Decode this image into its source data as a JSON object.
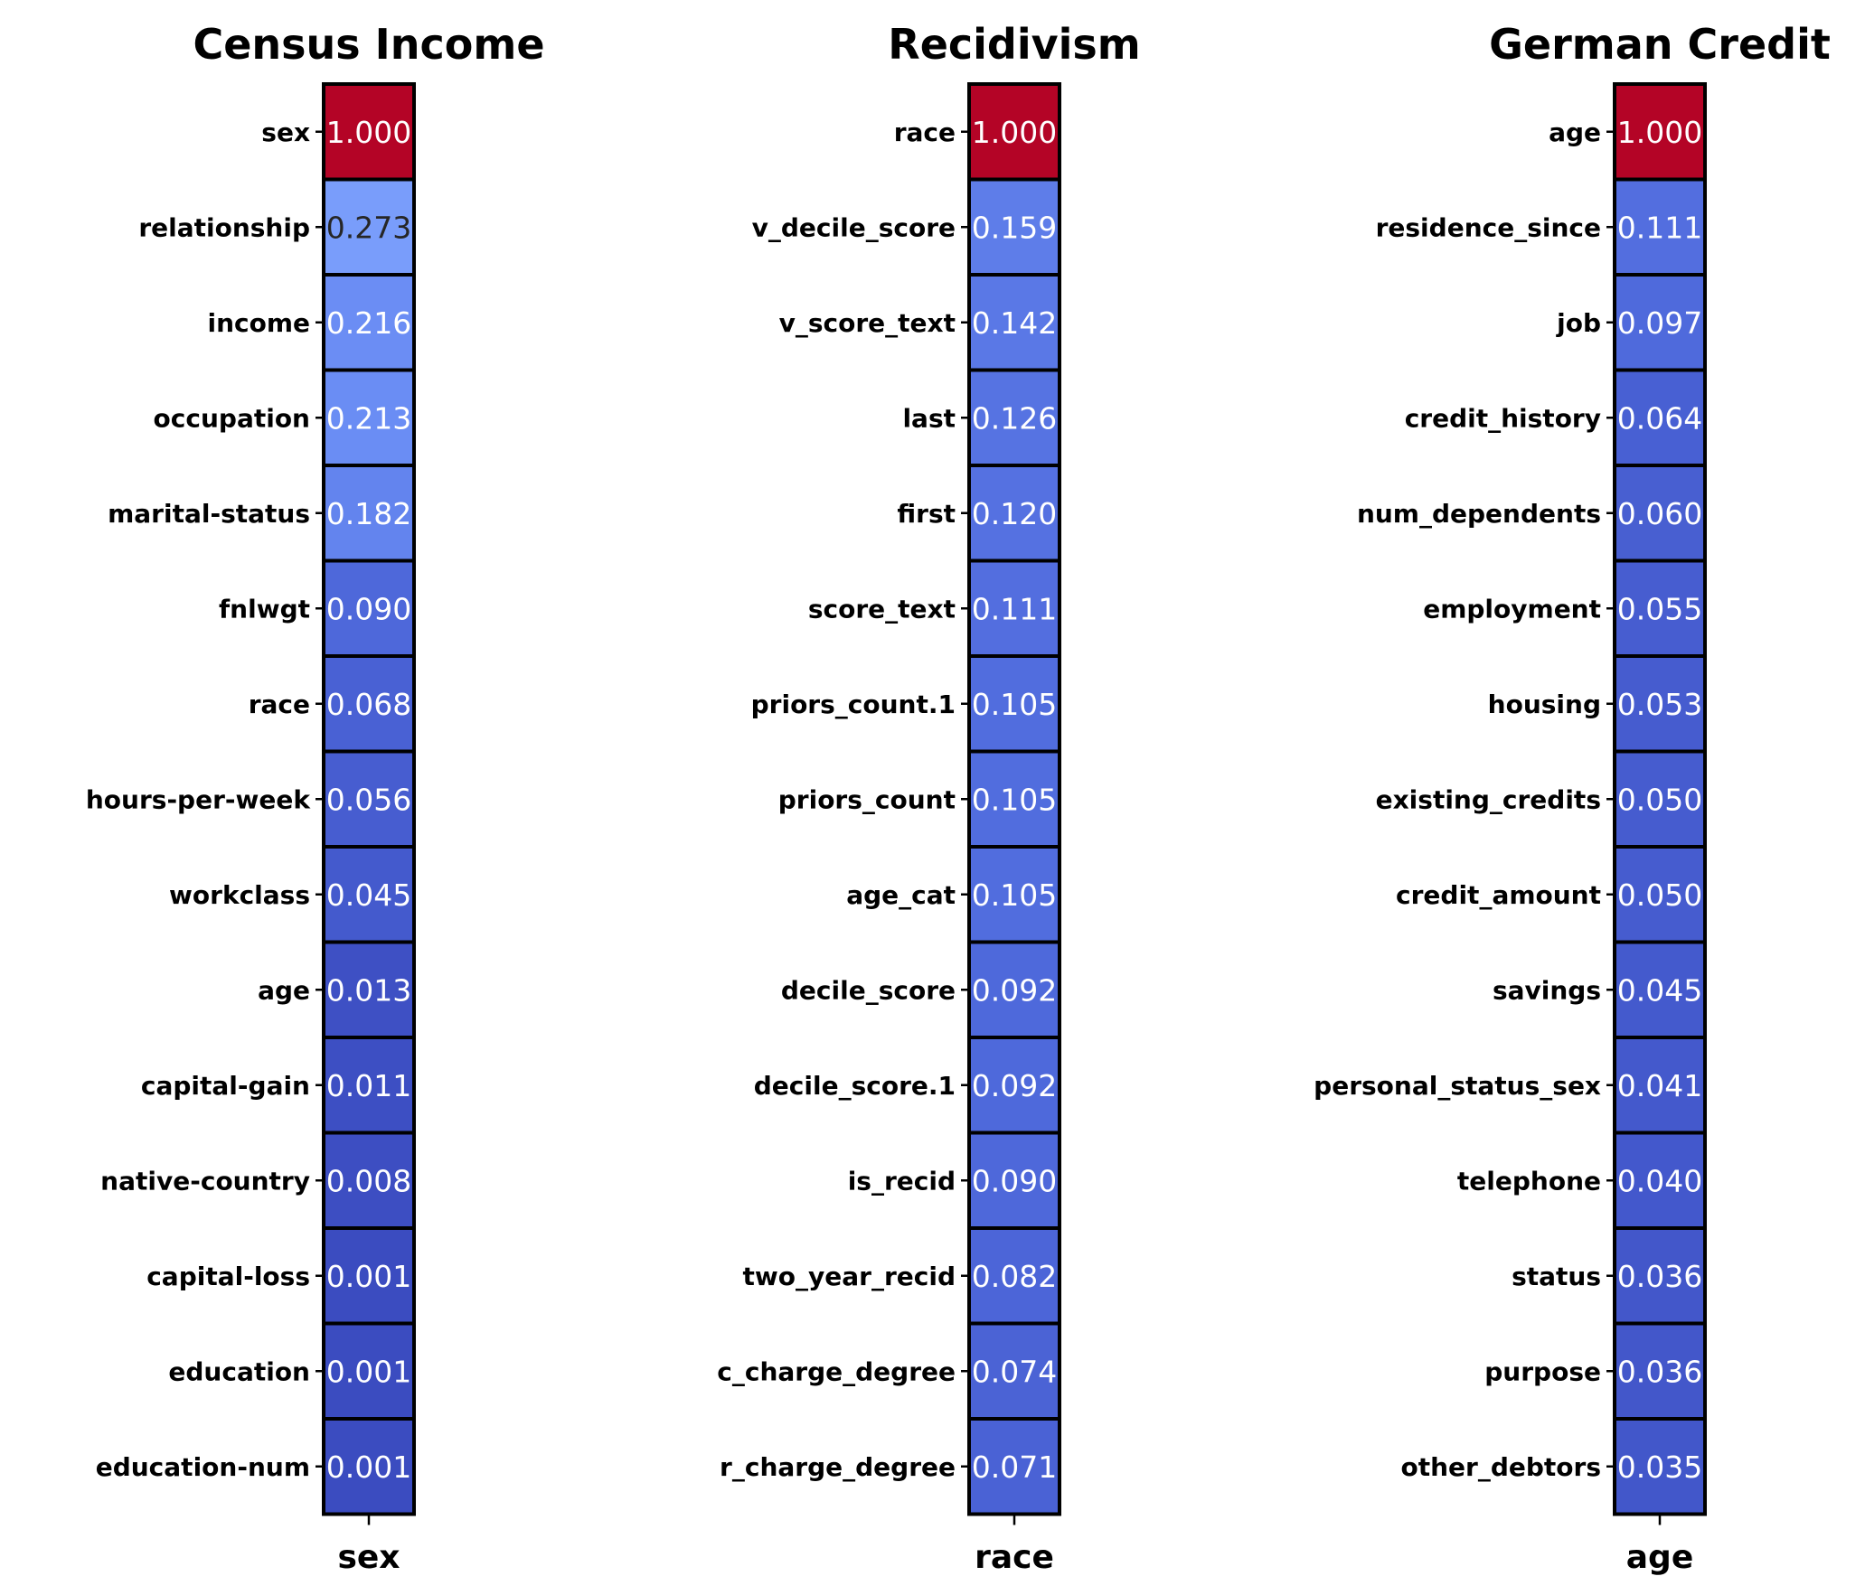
{
  "chart_data": [
    {
      "type": "heatmap",
      "title": "Census Income",
      "xlabel": "sex",
      "value_format": "3 decimals",
      "colormap": "coolwarm",
      "categories": [
        "sex",
        "relationship",
        "income",
        "occupation",
        "marital-status",
        "fnlwgt",
        "race",
        "hours-per-week",
        "workclass",
        "age",
        "capital-gain",
        "native-country",
        "capital-loss",
        "education",
        "education-num"
      ],
      "values": [
        1.0,
        0.273,
        0.216,
        0.213,
        0.182,
        0.09,
        0.068,
        0.056,
        0.045,
        0.013,
        0.011,
        0.008,
        0.001,
        0.001,
        0.001
      ]
    },
    {
      "type": "heatmap",
      "title": "Recidivism",
      "xlabel": "race",
      "value_format": "3 decimals",
      "colormap": "coolwarm",
      "categories": [
        "race",
        "v_decile_score",
        "v_score_text",
        "last",
        "first",
        "score_text",
        "priors_count.1",
        "priors_count",
        "age_cat",
        "decile_score",
        "decile_score.1",
        "is_recid",
        "two_year_recid",
        "c_charge_degree",
        "r_charge_degree"
      ],
      "values": [
        1.0,
        0.159,
        0.142,
        0.126,
        0.12,
        0.111,
        0.105,
        0.105,
        0.105,
        0.092,
        0.092,
        0.09,
        0.082,
        0.074,
        0.071
      ]
    },
    {
      "type": "heatmap",
      "title": "German Credit",
      "xlabel": "age",
      "value_format": "3 decimals",
      "colormap": "coolwarm",
      "categories": [
        "age",
        "residence_since",
        "job",
        "credit_history",
        "num_dependents",
        "employment",
        "housing",
        "existing_credits",
        "credit_amount",
        "savings",
        "personal_status_sex",
        "telephone",
        "status",
        "purpose",
        "other_debtors"
      ],
      "values": [
        1.0,
        0.111,
        0.097,
        0.064,
        0.06,
        0.055,
        0.053,
        0.05,
        0.05,
        0.045,
        0.041,
        0.04,
        0.036,
        0.036,
        0.035
      ]
    }
  ]
}
